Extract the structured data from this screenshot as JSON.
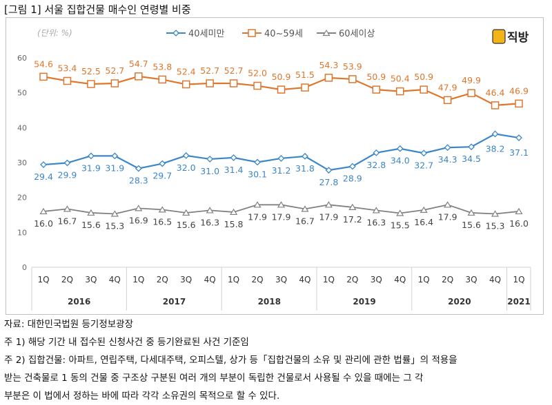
{
  "title": "[그림 1] 서울 집합건물 매수인 연령별 비중",
  "notes": [
    "자료: 대한민국법원 등기정보광장",
    "주 1) 해당 기간 내 접수된 신청사건 중 등기완료된 사건 기준임",
    "주 2) 집합건물: 아파트, 연립주택, 다세대주택, 오피스텔, 상가 등「집합건물의 소유 및 관리에 관한 법률」의 적용을",
    "받는 건축물로 1 동의 건물 중 구조상 구분된 여러 개의 부분이 독립한 건물로서 사용될 수 있을 때에는 그 각",
    "부분은 이 법에서 정하는 바에 따라 각각 소유권의 목적으로 할 수 있다."
  ],
  "logo_text": "직방",
  "chart_data": {
    "type": "line",
    "unit_label": "(단위: %)",
    "ylim": [
      0,
      60
    ],
    "yticks": [
      0,
      10,
      20,
      30,
      40,
      50,
      60
    ],
    "grid": false,
    "legend": "top-center",
    "quarters": [
      "1Q",
      "2Q",
      "3Q",
      "4Q",
      "1Q",
      "2Q",
      "3Q",
      "4Q",
      "1Q",
      "2Q",
      "3Q",
      "4Q",
      "1Q",
      "2Q",
      "3Q",
      "4Q",
      "1Q",
      "2Q",
      "3Q",
      "4Q",
      "1Q"
    ],
    "years": [
      {
        "label": "2016",
        "count": 4
      },
      {
        "label": "2017",
        "count": 4
      },
      {
        "label": "2018",
        "count": 4
      },
      {
        "label": "2019",
        "count": 4
      },
      {
        "label": "2020",
        "count": 4
      },
      {
        "label": "2021",
        "count": 1
      }
    ],
    "series": [
      {
        "name": "40세미만",
        "color": "#3b86c8",
        "marker": "diamond",
        "values": [
          29.4,
          29.9,
          31.9,
          31.9,
          28.3,
          29.7,
          32.0,
          31.0,
          31.4,
          30.1,
          31.2,
          31.8,
          27.8,
          28.9,
          32.8,
          34.0,
          32.7,
          34.3,
          34.5,
          38.2,
          37.1
        ]
      },
      {
        "name": "40~59세",
        "color": "#e0762b",
        "marker": "square",
        "values": [
          54.6,
          53.4,
          52.5,
          52.7,
          54.7,
          53.8,
          52.4,
          52.7,
          52.7,
          52.0,
          50.9,
          51.5,
          54.3,
          53.9,
          50.9,
          50.4,
          50.9,
          47.9,
          49.9,
          46.4,
          46.9
        ]
      },
      {
        "name": "60세이상",
        "color": "#808080",
        "marker": "triangle",
        "values": [
          16.0,
          16.7,
          15.6,
          15.3,
          16.9,
          16.5,
          15.6,
          16.3,
          15.8,
          17.9,
          17.9,
          16.7,
          17.9,
          17.2,
          16.3,
          15.5,
          16.4,
          17.9,
          15.6,
          15.3,
          16.0
        ]
      }
    ]
  }
}
